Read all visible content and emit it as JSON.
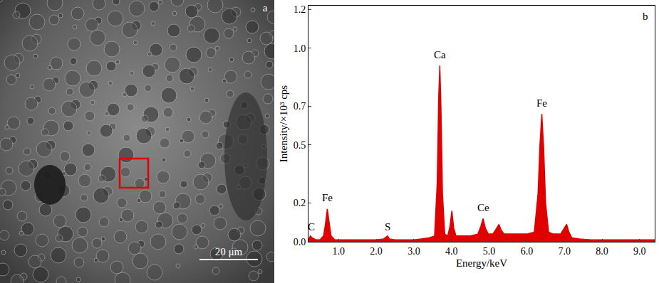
{
  "micrograph": {
    "label": "a",
    "scale_bar": "20 μm"
  },
  "chart_data": {
    "type": "area",
    "panel_label": "b",
    "x_label": "Energy/keV",
    "y_label": "Intensity/×10³ cps",
    "xlim": [
      0.2,
      9.4
    ],
    "xticks": [
      {
        "value": 1,
        "label": "1.0"
      },
      {
        "value": 2,
        "label": "2.0"
      },
      {
        "value": 3,
        "label": "3.0"
      },
      {
        "value": 4,
        "label": "4.0"
      },
      {
        "value": 5,
        "label": "5.0"
      },
      {
        "value": 6,
        "label": "6.0"
      },
      {
        "value": 7,
        "label": "7.0"
      },
      {
        "value": 8,
        "label": "8.0"
      },
      {
        "value": 9,
        "label": "9.0"
      }
    ],
    "ylim": [
      0,
      1.22
    ],
    "yticks": [
      {
        "value": 0,
        "label": "0.0"
      },
      0.2,
      0.5,
      0.7,
      {
        "value": 1,
        "label": "1.0"
      },
      1.2
    ],
    "grid": false,
    "color": "#e00000",
    "x": [
      0.2,
      0.25,
      0.3,
      0.4,
      0.5,
      0.6,
      0.65,
      0.7,
      0.75,
      0.8,
      0.9,
      1.0,
      1.2,
      1.5,
      1.8,
      2.0,
      2.2,
      2.3,
      2.35,
      2.5,
      2.8,
      3.0,
      3.2,
      3.4,
      3.55,
      3.62,
      3.66,
      3.69,
      3.72,
      3.76,
      3.82,
      3.9,
      3.96,
      4.01,
      4.06,
      4.12,
      4.3,
      4.5,
      4.7,
      4.78,
      4.84,
      4.9,
      4.98,
      5.1,
      5.2,
      5.26,
      5.32,
      5.4,
      5.6,
      5.8,
      6.0,
      6.2,
      6.3,
      6.35,
      6.4,
      6.45,
      6.5,
      6.58,
      6.7,
      6.9,
      7.0,
      7.06,
      7.12,
      7.2,
      7.4,
      7.7,
      8.0,
      8.3,
      8.6,
      9.0,
      9.4
    ],
    "values": [
      0.01,
      0.03,
      0.02,
      0.01,
      0.01,
      0.03,
      0.09,
      0.17,
      0.1,
      0.03,
      0.01,
      0.01,
      0.01,
      0.01,
      0.01,
      0.01,
      0.015,
      0.03,
      0.015,
      0.01,
      0.01,
      0.01,
      0.015,
      0.02,
      0.03,
      0.3,
      0.75,
      0.91,
      0.7,
      0.25,
      0.04,
      0.03,
      0.08,
      0.16,
      0.07,
      0.03,
      0.03,
      0.03,
      0.04,
      0.08,
      0.12,
      0.07,
      0.04,
      0.04,
      0.07,
      0.09,
      0.06,
      0.04,
      0.04,
      0.04,
      0.04,
      0.05,
      0.25,
      0.5,
      0.66,
      0.48,
      0.2,
      0.05,
      0.04,
      0.04,
      0.07,
      0.09,
      0.05,
      0.02,
      0.015,
      0.01,
      0.01,
      0.01,
      0.01,
      0.01,
      0.01
    ],
    "annotations": [
      {
        "text": "C",
        "x": 0.28,
        "y": 0.04
      },
      {
        "text": "Fe",
        "x": 0.7,
        "y": 0.19
      },
      {
        "text": "S",
        "x": 2.3,
        "y": 0.04
      },
      {
        "text": "Ca",
        "x": 3.69,
        "y": 0.93
      },
      {
        "text": "Ce",
        "x": 4.84,
        "y": 0.14
      },
      {
        "text": "Fe",
        "x": 6.4,
        "y": 0.68
      }
    ]
  }
}
